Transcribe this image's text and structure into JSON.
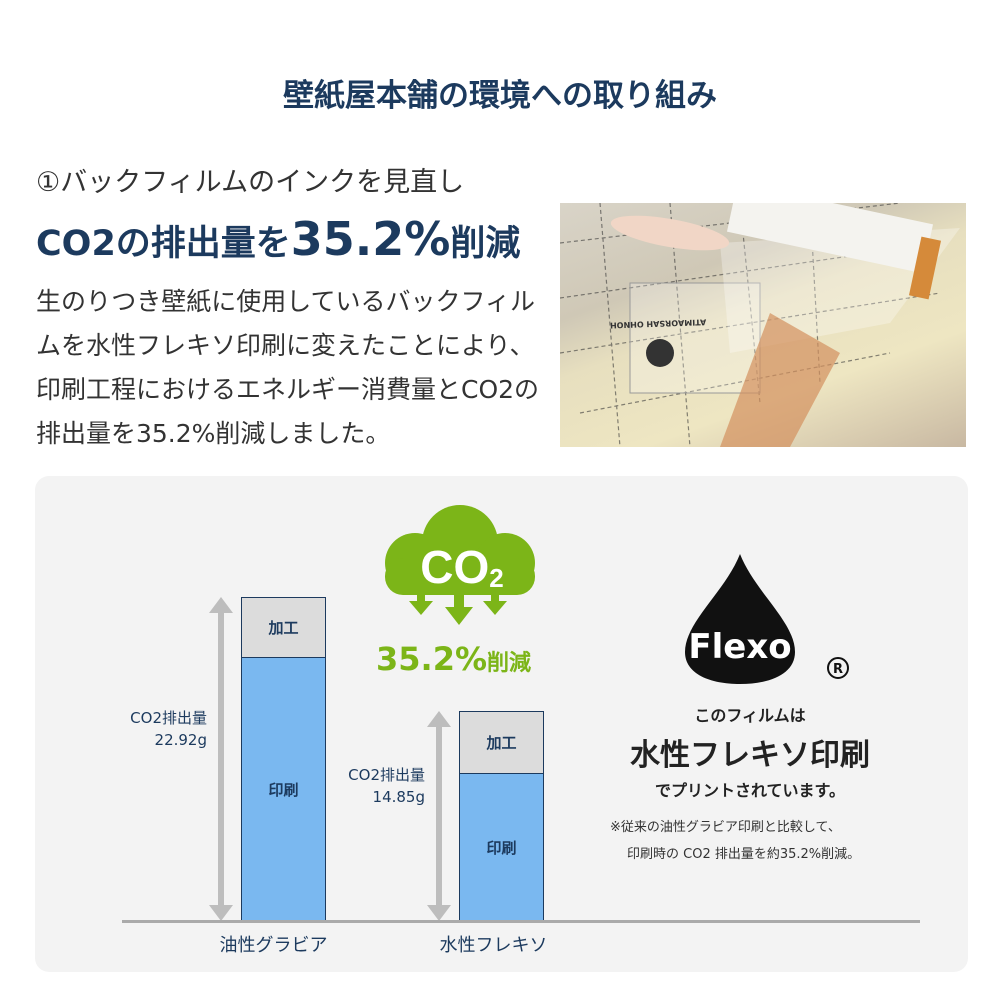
{
  "title": "壁紙屋本舗の環境への取り組み",
  "section": {
    "subtitle": "①バックフィルムのインクを見直し",
    "headline_pre": "CO2の排出量を",
    "headline_value": "35.2%",
    "headline_post": "削減",
    "body": "生のりつき壁紙に使用しているバックフィルムを水性フレキソ印刷に変えたことにより、印刷工程におけるエネルギー消費量とCO2の排出量を35.2%削減しました。"
  },
  "photo": {
    "film_print_text": "ATIMAORSAH OHNOH"
  },
  "cloud": {
    "label": "CO",
    "subscript": "2",
    "reduction": "35.2%",
    "reduction_suffix": "削減",
    "color": "#7cb518"
  },
  "flexo": {
    "logo": "Flexo",
    "registered": "®",
    "line1": "このフィルムは",
    "line2": "水性フレキソ印刷",
    "line3": "でプリントされています。",
    "note1": "※従来の油性グラビア印刷と比較して、",
    "note2": "印刷時の CO2 排出量を約35.2%削減。"
  },
  "chart_data": {
    "type": "bar",
    "stacked": true,
    "categories": [
      "油性グラビア",
      "水性フレキソ"
    ],
    "totals_label": "CO2排出量",
    "totals": [
      "22.92g",
      "14.85g"
    ],
    "total_values": [
      22.92,
      14.85
    ],
    "series": [
      {
        "name": "印刷",
        "values": [
          18.7,
          10.5
        ],
        "color": "#7ab8f0"
      },
      {
        "name": "加工",
        "values": [
          4.22,
          4.35
        ],
        "color": "#dcdcdc"
      }
    ]
  }
}
